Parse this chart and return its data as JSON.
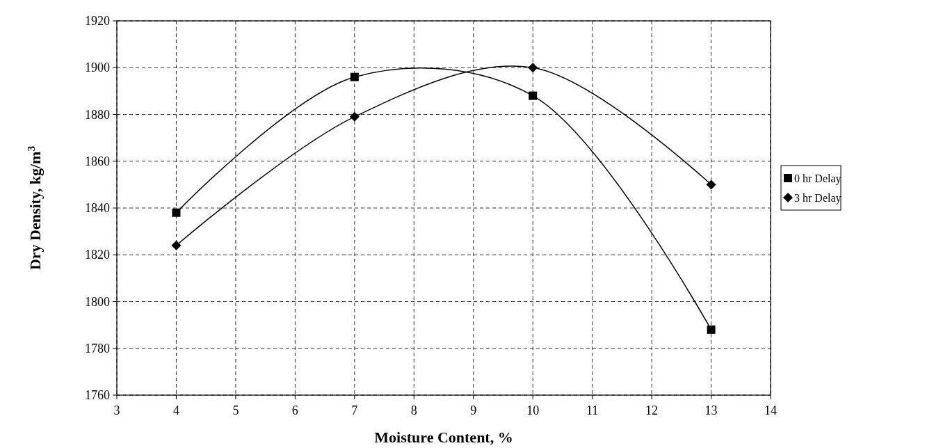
{
  "chart_data": {
    "type": "line",
    "xlabel": "Moisture Content, %",
    "ylabel": "Dry Density, kg/m$^{3}$",
    "xlim": [
      3,
      14
    ],
    "xticks": [
      3,
      4,
      5,
      6,
      7,
      8,
      9,
      10,
      11,
      12,
      13,
      14
    ],
    "ylim": [
      1760,
      1920
    ],
    "yticks": [
      1760,
      1780,
      1800,
      1820,
      1840,
      1860,
      1880,
      1900,
      1920
    ],
    "grid": true,
    "legend": "right",
    "x": [
      4,
      7,
      10,
      13
    ],
    "series": [
      {
        "name": "0 hr Delay",
        "color": "#000000",
        "marker": "square",
        "values": [
          1838,
          1896,
          1888,
          1788
        ]
      },
      {
        "name": "3 hr Delay",
        "color": "#000000",
        "marker": "diamond",
        "values": [
          1824,
          1879,
          1900,
          1850
        ]
      }
    ]
  }
}
